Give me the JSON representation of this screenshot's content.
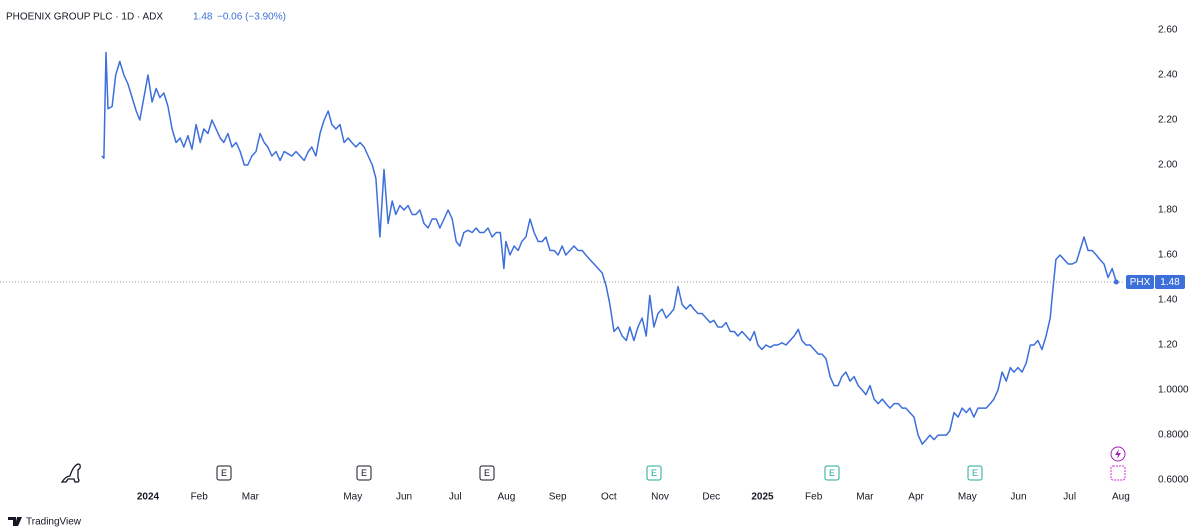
{
  "chart_data": {
    "type": "line",
    "title": "PHOENIX GROUP PLC · 1D · ADX",
    "change": "−0.06 (−3.90%)",
    "symbol": "PHX",
    "last_value": 1.48,
    "brand": "TradingView",
    "event_markers": [
      "E",
      "E",
      "E",
      "E",
      "E",
      "E"
    ],
    "color": "#3d6fdb",
    "grid": false,
    "xlim": [
      -2.89,
      19.08
    ],
    "ylim": [
      0.556,
      2.733
    ],
    "xticks": [
      {
        "value": 0,
        "label": "2024"
      },
      {
        "value": 1,
        "label": "Feb"
      },
      {
        "value": 2,
        "label": "Mar"
      },
      {
        "value": 4,
        "label": "May"
      },
      {
        "value": 5,
        "label": "Jun"
      },
      {
        "value": 6,
        "label": "Jul"
      },
      {
        "value": 7,
        "label": "Aug"
      },
      {
        "value": 8,
        "label": "Sep"
      },
      {
        "value": 9,
        "label": "Oct"
      },
      {
        "value": 10,
        "label": "Nov"
      },
      {
        "value": 11,
        "label": "Dec"
      },
      {
        "value": 12,
        "label": "2025"
      },
      {
        "value": 13,
        "label": "Feb"
      },
      {
        "value": 14,
        "label": "Mar"
      },
      {
        "value": 15,
        "label": "Apr"
      },
      {
        "value": 16,
        "label": "May"
      },
      {
        "value": 17,
        "label": "Jun"
      },
      {
        "value": 18,
        "label": "Jul"
      },
      {
        "value": 19,
        "label": "Aug"
      }
    ],
    "yticks": [
      {
        "value": 0.6,
        "label": "0.6000"
      },
      {
        "value": 0.8,
        "label": "0.8000"
      },
      {
        "value": 1.0,
        "label": "1.0000"
      },
      {
        "value": 1.2,
        "label": "1.20"
      },
      {
        "value": 1.4,
        "label": "1.40"
      },
      {
        "value": 1.6,
        "label": "1.60"
      },
      {
        "value": 1.8,
        "label": "1.80"
      },
      {
        "value": 2.0,
        "label": "2.00"
      },
      {
        "value": 2.2,
        "label": "2.20"
      },
      {
        "value": 2.4,
        "label": "2.40"
      },
      {
        "value": 2.6,
        "label": "2.60"
      }
    ],
    "x": [
      -0.9,
      -0.86,
      -0.82,
      -0.78,
      -0.7,
      -0.63,
      -0.55,
      -0.47,
      -0.39,
      -0.31,
      -0.23,
      -0.16,
      -0.08,
      0,
      0.08,
      0.16,
      0.23,
      0.31,
      0.39,
      0.47,
      0.55,
      0.63,
      0.7,
      0.78,
      0.86,
      0.94,
      1.02,
      1.09,
      1.17,
      1.25,
      1.33,
      1.41,
      1.48,
      1.56,
      1.64,
      1.72,
      1.8,
      1.88,
      1.95,
      2.03,
      2.11,
      2.19,
      2.27,
      2.34,
      2.42,
      2.5,
      2.58,
      2.66,
      2.73,
      2.81,
      2.89,
      2.97,
      3.05,
      3.13,
      3.2,
      3.28,
      3.36,
      3.44,
      3.52,
      3.59,
      3.67,
      3.75,
      3.83,
      3.91,
      3.98,
      4.06,
      4.14,
      4.22,
      4.3,
      4.38,
      4.45,
      4.53,
      4.61,
      4.69,
      4.77,
      4.84,
      4.92,
      5.0,
      5.08,
      5.16,
      5.23,
      5.31,
      5.39,
      5.47,
      5.55,
      5.63,
      5.7,
      5.78,
      5.86,
      5.94,
      6.02,
      6.09,
      6.17,
      6.25,
      6.33,
      6.41,
      6.48,
      6.56,
      6.64,
      6.72,
      6.8,
      6.88,
      6.95,
      6.99,
      7.07,
      7.15,
      7.23,
      7.3,
      7.38,
      7.46,
      7.54,
      7.62,
      7.7,
      7.77,
      7.85,
      7.93,
      8.01,
      8.09,
      8.16,
      8.24,
      8.32,
      8.4,
      8.48,
      8.55,
      8.63,
      8.71,
      8.79,
      8.87,
      8.95,
      9.02,
      9.1,
      9.18,
      9.26,
      9.34,
      9.41,
      9.49,
      9.57,
      9.65,
      9.73,
      9.8,
      9.88,
      9.96,
      10.04,
      10.12,
      10.2,
      10.27,
      10.35,
      10.43,
      10.51,
      10.59,
      10.66,
      10.74,
      10.82,
      10.9,
      10.98,
      11.05,
      11.13,
      11.21,
      11.29,
      11.37,
      11.45,
      11.52,
      11.6,
      11.68,
      11.76,
      11.84,
      11.91,
      11.99,
      12.07,
      12.15,
      12.23,
      12.3,
      12.38,
      12.46,
      12.54,
      12.62,
      12.7,
      12.77,
      12.85,
      12.93,
      13.01,
      13.09,
      13.16,
      13.24,
      13.32,
      13.4,
      13.48,
      13.55,
      13.63,
      13.71,
      13.79,
      13.87,
      13.95,
      14.02,
      14.1,
      14.18,
      14.26,
      14.34,
      14.41,
      14.49,
      14.57,
      14.65,
      14.73,
      14.8,
      14.88,
      14.96,
      15.04,
      15.12,
      15.2,
      15.27,
      15.35,
      15.43,
      15.51,
      15.59,
      15.66,
      15.74,
      15.82,
      15.9,
      15.98,
      16.05,
      16.13,
      16.21,
      16.29,
      16.37,
      16.45,
      16.52,
      16.6,
      16.68,
      16.76,
      16.84,
      16.91,
      16.99,
      17.07,
      17.15,
      17.23,
      17.3,
      17.38,
      17.46,
      17.54,
      17.62,
      17.66,
      17.73,
      17.81,
      17.89,
      17.97,
      18.05,
      18.13,
      18.2,
      18.28,
      18.36,
      18.44,
      18.52,
      18.59,
      18.67,
      18.75,
      18.83,
      18.91
    ],
    "series": [
      {
        "name": "PHX",
        "values": [
          2.04,
          2.03,
          2.5,
          2.25,
          2.26,
          2.4,
          2.46,
          2.4,
          2.36,
          2.3,
          2.24,
          2.2,
          2.3,
          2.4,
          2.28,
          2.34,
          2.3,
          2.32,
          2.26,
          2.16,
          2.1,
          2.12,
          2.08,
          2.13,
          2.07,
          2.18,
          2.1,
          2.16,
          2.14,
          2.2,
          2.16,
          2.12,
          2.1,
          2.14,
          2.08,
          2.1,
          2.06,
          2.0,
          2.0,
          2.04,
          2.06,
          2.14,
          2.1,
          2.08,
          2.04,
          2.06,
          2.02,
          2.06,
          2.05,
          2.04,
          2.06,
          2.04,
          2.02,
          2.06,
          2.08,
          2.04,
          2.14,
          2.2,
          2.24,
          2.18,
          2.16,
          2.18,
          2.1,
          2.12,
          2.1,
          2.08,
          2.1,
          2.08,
          2.04,
          2.0,
          1.94,
          1.68,
          1.98,
          1.74,
          1.84,
          1.78,
          1.82,
          1.8,
          1.82,
          1.78,
          1.78,
          1.8,
          1.74,
          1.72,
          1.76,
          1.76,
          1.72,
          1.76,
          1.8,
          1.76,
          1.66,
          1.64,
          1.7,
          1.71,
          1.7,
          1.72,
          1.7,
          1.7,
          1.72,
          1.68,
          1.7,
          1.7,
          1.54,
          1.66,
          1.6,
          1.64,
          1.62,
          1.66,
          1.68,
          1.76,
          1.7,
          1.66,
          1.66,
          1.68,
          1.62,
          1.62,
          1.6,
          1.64,
          1.6,
          1.62,
          1.64,
          1.62,
          1.62,
          1.6,
          1.58,
          1.56,
          1.54,
          1.52,
          1.46,
          1.38,
          1.26,
          1.28,
          1.24,
          1.22,
          1.28,
          1.22,
          1.28,
          1.32,
          1.24,
          1.42,
          1.28,
          1.34,
          1.36,
          1.32,
          1.34,
          1.36,
          1.46,
          1.38,
          1.36,
          1.38,
          1.36,
          1.34,
          1.34,
          1.32,
          1.3,
          1.31,
          1.28,
          1.28,
          1.3,
          1.26,
          1.26,
          1.24,
          1.26,
          1.24,
          1.22,
          1.26,
          1.2,
          1.18,
          1.2,
          1.19,
          1.2,
          1.2,
          1.21,
          1.2,
          1.22,
          1.24,
          1.27,
          1.22,
          1.2,
          1.2,
          1.18,
          1.16,
          1.16,
          1.14,
          1.06,
          1.02,
          1.02,
          1.06,
          1.08,
          1.04,
          1.06,
          1.02,
          1.0,
          0.98,
          1.02,
          0.96,
          0.94,
          0.96,
          0.94,
          0.92,
          0.94,
          0.94,
          0.92,
          0.92,
          0.9,
          0.88,
          0.8,
          0.76,
          0.78,
          0.8,
          0.78,
          0.8,
          0.8,
          0.8,
          0.82,
          0.9,
          0.88,
          0.92,
          0.9,
          0.92,
          0.88,
          0.92,
          0.92,
          0.92,
          0.94,
          0.96,
          1.0,
          1.08,
          1.04,
          1.1,
          1.08,
          1.1,
          1.08,
          1.12,
          1.2,
          1.2,
          1.22,
          1.18,
          1.24,
          1.32,
          1.42,
          1.58,
          1.6,
          1.58,
          1.56,
          1.56,
          1.57,
          1.62,
          1.68,
          1.62,
          1.62,
          1.6,
          1.58,
          1.56,
          1.5,
          1.54,
          1.48
        ]
      }
    ]
  }
}
